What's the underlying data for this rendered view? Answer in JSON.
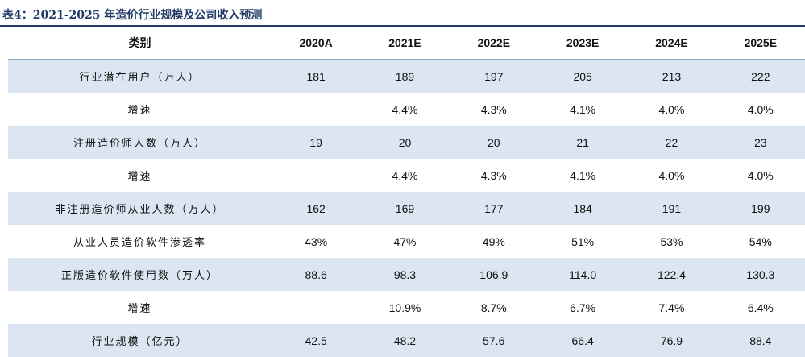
{
  "title": "表4：2021-2025 年造价行业规模及公司收入预测",
  "header": [
    "类别",
    "2020A",
    "2021E",
    "2022E",
    "2023E",
    "2024E",
    "2025E"
  ],
  "rows": [
    {
      "label": "行业潜在用户（万人）",
      "values": [
        "181",
        "189",
        "197",
        "205",
        "213",
        "222"
      ]
    },
    {
      "label": "增速",
      "values": [
        "",
        "4.4%",
        "4.3%",
        "4.1%",
        "4.0%",
        "4.0%"
      ]
    },
    {
      "label": "注册造价师人数（万人）",
      "values": [
        "19",
        "20",
        "20",
        "21",
        "22",
        "23"
      ]
    },
    {
      "label": "增速",
      "values": [
        "",
        "4.4%",
        "4.3%",
        "4.1%",
        "4.0%",
        "4.0%"
      ]
    },
    {
      "label": "非注册造价师从业人数（万人）",
      "values": [
        "162",
        "169",
        "177",
        "184",
        "191",
        "199"
      ]
    },
    {
      "label": "从业人员造价软件渗透率",
      "values": [
        "43%",
        "47%",
        "49%",
        "51%",
        "53%",
        "54%"
      ]
    },
    {
      "label": "正版造价软件使用数（万人）",
      "values": [
        "88.6",
        "98.3",
        "106.9",
        "114.0",
        "122.4",
        "130.3"
      ]
    },
    {
      "label": "增速",
      "values": [
        "",
        "10.9%",
        "8.7%",
        "6.7%",
        "7.4%",
        "6.4%"
      ]
    },
    {
      "label": "行业规模（亿元）",
      "values": [
        "42.5",
        "48.2",
        "57.6",
        "66.4",
        "76.9",
        "88.4"
      ]
    }
  ]
}
